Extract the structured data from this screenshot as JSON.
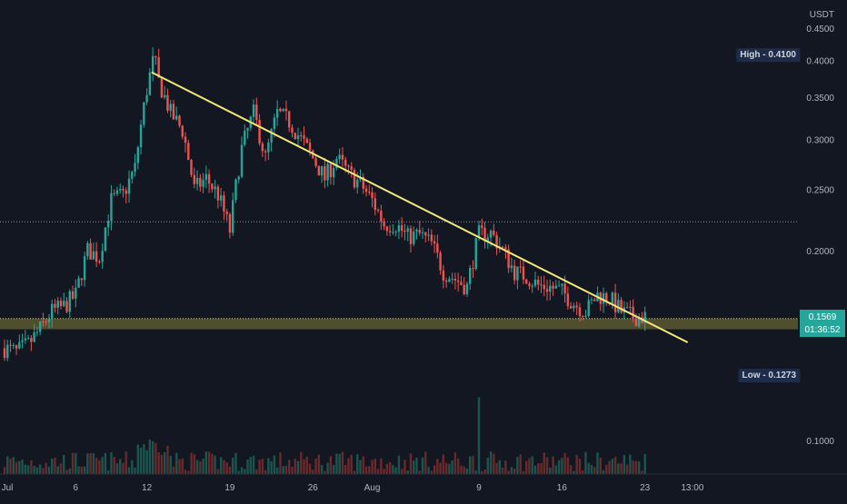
{
  "chart_data": {
    "type": "candlestick",
    "currency": "USDT",
    "y_scale": "log",
    "ylim": [
      0.085,
      0.48
    ],
    "y_ticks": [
      {
        "value": 0.45,
        "label": "0.4500"
      },
      {
        "value": 0.4,
        "label": "0.4000"
      },
      {
        "value": 0.35,
        "label": "0.3500"
      },
      {
        "value": 0.3,
        "label": "0.3000"
      },
      {
        "value": 0.25,
        "label": "0.2500"
      },
      {
        "value": 0.2,
        "label": "0.2000"
      },
      {
        "value": 0.1,
        "label": "0.1000"
      }
    ],
    "x_ticks": [
      {
        "day": 0,
        "label": "Jul"
      },
      {
        "day": 6,
        "label": "6"
      },
      {
        "day": 12,
        "label": "12"
      },
      {
        "day": 19,
        "label": "19"
      },
      {
        "day": 26,
        "label": "26"
      },
      {
        "day": 31,
        "label": "Aug"
      },
      {
        "day": 40,
        "label": "9"
      },
      {
        "day": 47,
        "label": "16"
      },
      {
        "day": 54,
        "label": "23"
      },
      {
        "day": 58,
        "label": "13:00"
      }
    ],
    "x_range_days": [
      0,
      60
    ],
    "price_path": [
      [
        0,
        0.14
      ],
      [
        1,
        0.138
      ],
      [
        2,
        0.142
      ],
      [
        3,
        0.15
      ],
      [
        4,
        0.16
      ],
      [
        5,
        0.163
      ],
      [
        6,
        0.17
      ],
      [
        7,
        0.2
      ],
      [
        8,
        0.195
      ],
      [
        9,
        0.24
      ],
      [
        10,
        0.245
      ],
      [
        11,
        0.27
      ],
      [
        12,
        0.36
      ],
      [
        12.6,
        0.405
      ],
      [
        13,
        0.37
      ],
      [
        14,
        0.33
      ],
      [
        15,
        0.31
      ],
      [
        16,
        0.25
      ],
      [
        17,
        0.26
      ],
      [
        18,
        0.245
      ],
      [
        19,
        0.215
      ],
      [
        20,
        0.29
      ],
      [
        21,
        0.33
      ],
      [
        22,
        0.28
      ],
      [
        23,
        0.33
      ],
      [
        24,
        0.32
      ],
      [
        25,
        0.3
      ],
      [
        26,
        0.28
      ],
      [
        27,
        0.26
      ],
      [
        28,
        0.28
      ],
      [
        29,
        0.265
      ],
      [
        30,
        0.255
      ],
      [
        31,
        0.24
      ],
      [
        32,
        0.22
      ],
      [
        33,
        0.22
      ],
      [
        34,
        0.21
      ],
      [
        35,
        0.212
      ],
      [
        36,
        0.205
      ],
      [
        37,
        0.185
      ],
      [
        38,
        0.18
      ],
      [
        39,
        0.175
      ],
      [
        40,
        0.212
      ],
      [
        41,
        0.213
      ],
      [
        42,
        0.2
      ],
      [
        43,
        0.185
      ],
      [
        44,
        0.182
      ],
      [
        45,
        0.176
      ],
      [
        46,
        0.175
      ],
      [
        47,
        0.172
      ],
      [
        48,
        0.165
      ],
      [
        49,
        0.16
      ],
      [
        50,
        0.17
      ],
      [
        51,
        0.168
      ],
      [
        52,
        0.16
      ],
      [
        53,
        0.157
      ],
      [
        54,
        0.1569
      ]
    ],
    "trendline": {
      "start": {
        "day": 12.4,
        "price": 0.383
      },
      "end": {
        "day": 57.6,
        "price": 0.143
      }
    },
    "support_zone": {
      "low": 0.15,
      "high": 0.156
    },
    "reference_line": {
      "price": 0.222
    },
    "high_marker": {
      "label": "High",
      "value": "0.4100",
      "price": 0.41
    },
    "low_marker": {
      "label": "Low",
      "value": "0.1273",
      "price": 0.1273
    },
    "last_price": {
      "value": "0.1569",
      "countdown": "01:36:52",
      "price": 0.1569
    },
    "colors": {
      "background": "#131722",
      "up": "#26a69a",
      "down": "#ef5350",
      "trendline": "#f5e87a",
      "zone": "#827d3a",
      "axis_text": "#b2b5be",
      "label_bg": "#1e2c4a",
      "last_price_bg": "#26a69a"
    }
  }
}
